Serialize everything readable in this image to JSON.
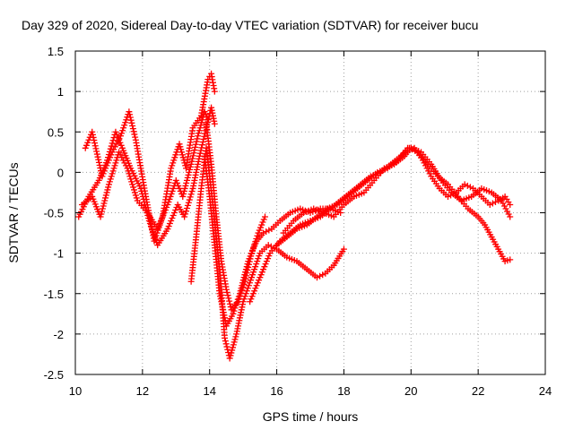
{
  "chart_data": {
    "type": "scatter",
    "title": "Day 329 of 2020, Sidereal Day-to-day VTEC variation (SDTVAR) for receiver bucu",
    "xlabel": "GPS time / hours",
    "ylabel": "SDTVAR / TECUs",
    "xlim": [
      10,
      24
    ],
    "ylim": [
      -2.5,
      1.5
    ],
    "x_ticks": [
      10,
      12,
      14,
      16,
      18,
      20,
      22,
      24
    ],
    "y_ticks": [
      -2.5,
      -2,
      -1.5,
      -1,
      -0.5,
      0,
      0.5,
      1,
      1.5
    ],
    "x_tick_labels": [
      "10",
      "12",
      "14",
      "16",
      "18",
      "20",
      "22",
      "24"
    ],
    "y_tick_labels": [
      "-2.5",
      "-2",
      "-1.5",
      "-1",
      "-0.5",
      "0",
      "0.5",
      "1",
      "1.5"
    ],
    "grid": true,
    "marker": "+",
    "color": "#ff0000",
    "series": [
      {
        "name": "track-1",
        "x": [
          10.3,
          10.5,
          10.8,
          11.1,
          11.35,
          11.6,
          11.8,
          12.1,
          12.35,
          12.6,
          12.85,
          13.1,
          13.3,
          13.5,
          13.75,
          13.95,
          14.05,
          14.15
        ],
        "y": [
          0.3,
          0.5,
          -0.05,
          0.25,
          0.45,
          0.75,
          0.4,
          -0.3,
          -0.85,
          -0.55,
          0.05,
          0.35,
          0.05,
          0.55,
          0.7,
          1.15,
          1.22,
          1.0
        ]
      },
      {
        "name": "track-2",
        "x": [
          10.2,
          10.5,
          10.75,
          11.0,
          11.3,
          11.55,
          11.85,
          12.15,
          12.45,
          12.75,
          13.0,
          13.2,
          13.45,
          13.65,
          13.85,
          13.95
        ],
        "y": [
          -0.4,
          -0.3,
          -0.55,
          -0.15,
          0.25,
          0.05,
          -0.35,
          -0.5,
          -0.7,
          -0.4,
          -0.1,
          -0.3,
          0.1,
          0.45,
          0.75,
          0.65
        ]
      },
      {
        "name": "track-3",
        "x": [
          10.1,
          10.4,
          10.7,
          10.95,
          11.2,
          11.4,
          11.65,
          11.95,
          12.2,
          12.45,
          12.75,
          13.05,
          13.25,
          13.5,
          13.7,
          13.9,
          14.05,
          14.15
        ],
        "y": [
          -0.55,
          -0.3,
          -0.1,
          0.15,
          0.5,
          0.3,
          0.05,
          -0.2,
          -0.6,
          -0.9,
          -0.7,
          -0.4,
          -0.55,
          -0.2,
          0.2,
          0.55,
          0.8,
          0.6
        ]
      },
      {
        "name": "track-4",
        "x": [
          13.45,
          13.6,
          13.75,
          13.9,
          14.1,
          14.3,
          14.45,
          14.6,
          14.8,
          15.0,
          15.25,
          15.5,
          15.75,
          16.0,
          16.3,
          16.6,
          16.9,
          17.2,
          17.45,
          17.7,
          18.0
        ],
        "y": [
          -1.35,
          -0.8,
          -0.2,
          0.3,
          -0.4,
          -1.2,
          -2.05,
          -2.3,
          -2.0,
          -1.6,
          -1.3,
          -1.0,
          -0.9,
          -0.95,
          -1.05,
          -1.1,
          -1.2,
          -1.3,
          -1.25,
          -1.15,
          -0.95
        ]
      },
      {
        "name": "track-5",
        "x": [
          13.85,
          14.0,
          14.15,
          14.3,
          14.5,
          14.7,
          14.9,
          15.15,
          15.4,
          15.6,
          15.85,
          16.1,
          16.4,
          16.7,
          17.0,
          17.3,
          17.6,
          17.9
        ],
        "y": [
          0.2,
          -0.3,
          -0.9,
          -1.5,
          -1.9,
          -1.75,
          -1.5,
          -1.1,
          -0.85,
          -0.75,
          -0.7,
          -0.6,
          -0.5,
          -0.45,
          -0.5,
          -0.45,
          -0.45,
          -0.5
        ]
      },
      {
        "name": "track-6",
        "x": [
          13.9,
          14.05,
          14.2,
          14.35,
          14.5,
          14.65,
          14.85,
          15.05,
          15.25,
          15.45,
          15.65
        ],
        "y": [
          0.6,
          0.1,
          -0.55,
          -1.1,
          -1.45,
          -1.7,
          -1.6,
          -1.35,
          -1.0,
          -0.75,
          -0.55
        ]
      },
      {
        "name": "track-7",
        "x": [
          15.2,
          15.5,
          15.8,
          16.1,
          16.4,
          16.7,
          17.0,
          17.3,
          17.6,
          17.9,
          18.2,
          18.5,
          18.8,
          19.1,
          19.4,
          19.7,
          19.95,
          20.2,
          20.5,
          20.8,
          21.1,
          21.4,
          21.7,
          22.0,
          22.2,
          22.4,
          22.6,
          22.8,
          22.95
        ],
        "y": [
          -1.6,
          -1.3,
          -1.0,
          -0.85,
          -0.75,
          -0.65,
          -0.6,
          -0.55,
          -0.45,
          -0.35,
          -0.25,
          -0.15,
          -0.05,
          0.0,
          0.1,
          0.2,
          0.3,
          0.25,
          0.1,
          -0.05,
          -0.15,
          -0.3,
          -0.45,
          -0.55,
          -0.65,
          -0.8,
          -0.95,
          -1.1,
          -1.08
        ]
      },
      {
        "name": "track-8",
        "x": [
          16.0,
          16.3,
          16.6,
          16.9,
          17.2,
          17.5,
          17.8,
          18.1,
          18.4,
          18.7,
          19.0,
          19.3,
          19.6,
          19.9,
          20.1,
          20.35,
          20.6,
          20.85,
          21.1,
          21.35,
          21.6,
          21.85,
          22.1,
          22.35,
          22.6,
          22.8,
          22.95
        ],
        "y": [
          -0.9,
          -0.8,
          -0.7,
          -0.65,
          -0.55,
          -0.45,
          -0.4,
          -0.3,
          -0.2,
          -0.1,
          0.0,
          0.05,
          0.15,
          0.3,
          0.3,
          0.15,
          -0.05,
          -0.2,
          -0.3,
          -0.25,
          -0.15,
          -0.2,
          -0.3,
          -0.4,
          -0.35,
          -0.3,
          -0.4
        ]
      },
      {
        "name": "track-9",
        "x": [
          16.2,
          16.5,
          16.8,
          17.1,
          17.4,
          17.7,
          18.0,
          18.3,
          18.6,
          18.9,
          19.2,
          19.5,
          19.8,
          20.0,
          20.3,
          20.6,
          20.9,
          21.2,
          21.5,
          21.8,
          22.1,
          22.4,
          22.7,
          22.95
        ],
        "y": [
          -0.75,
          -0.6,
          -0.5,
          -0.45,
          -0.5,
          -0.55,
          -0.4,
          -0.3,
          -0.25,
          -0.1,
          0.05,
          0.1,
          0.2,
          0.3,
          0.25,
          0.1,
          -0.1,
          -0.25,
          -0.35,
          -0.3,
          -0.2,
          -0.25,
          -0.35,
          -0.55
        ]
      }
    ]
  }
}
